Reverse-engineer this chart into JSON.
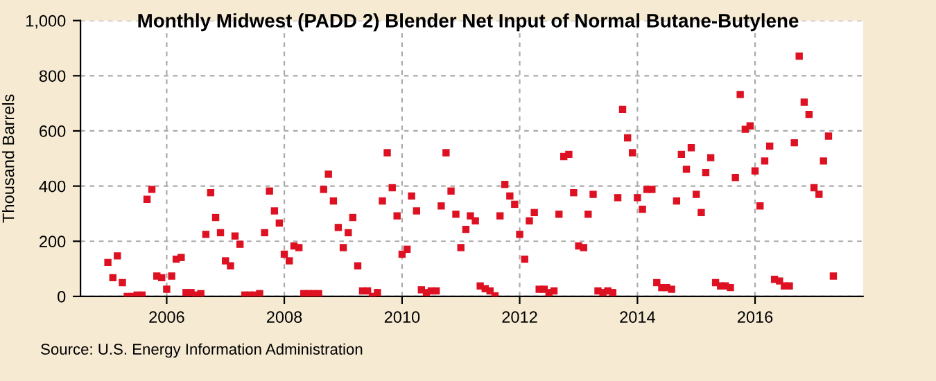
{
  "chart_data": {
    "type": "scatter",
    "title": "Monthly Midwest (PADD 2) Blender Net Input of Normal Butane-Butylene",
    "ylabel": "Thousand Barrels",
    "annotations": [
      "Source: U.S. Energy Information Administration"
    ],
    "x": [
      "2005-01",
      "2005-02",
      "2005-03",
      "2005-04",
      "2005-05",
      "2005-06",
      "2005-07",
      "2005-08",
      "2005-09",
      "2005-10",
      "2005-11",
      "2005-12",
      "2006-01",
      "2006-02",
      "2006-03",
      "2006-04",
      "2006-05",
      "2006-06",
      "2006-07",
      "2006-08",
      "2006-09",
      "2006-10",
      "2006-11",
      "2006-12",
      "2007-01",
      "2007-02",
      "2007-03",
      "2007-04",
      "2007-05",
      "2007-06",
      "2007-07",
      "2007-08",
      "2007-09",
      "2007-10",
      "2007-11",
      "2007-12",
      "2008-01",
      "2008-02",
      "2008-03",
      "2008-04",
      "2008-05",
      "2008-06",
      "2008-07",
      "2008-08",
      "2008-09",
      "2008-10",
      "2008-11",
      "2008-12",
      "2009-01",
      "2009-02",
      "2009-03",
      "2009-04",
      "2009-05",
      "2009-06",
      "2009-07",
      "2009-08",
      "2009-09",
      "2009-10",
      "2009-11",
      "2009-12",
      "2010-01",
      "2010-02",
      "2010-03",
      "2010-04",
      "2010-05",
      "2010-06",
      "2010-07",
      "2010-08",
      "2010-09",
      "2010-10",
      "2010-11",
      "2010-12",
      "2011-01",
      "2011-02",
      "2011-03",
      "2011-04",
      "2011-05",
      "2011-06",
      "2011-07",
      "2011-08",
      "2011-09",
      "2011-10",
      "2011-11",
      "2011-12",
      "2012-01",
      "2012-02",
      "2012-03",
      "2012-04",
      "2012-05",
      "2012-06",
      "2012-07",
      "2012-08",
      "2012-09",
      "2012-10",
      "2012-11",
      "2012-12",
      "2013-01",
      "2013-02",
      "2013-03",
      "2013-04",
      "2013-05",
      "2013-06",
      "2013-07",
      "2013-08",
      "2013-09",
      "2013-10",
      "2013-11",
      "2013-12",
      "2014-01",
      "2014-02",
      "2014-03",
      "2014-04",
      "2014-05",
      "2014-06",
      "2014-07",
      "2014-08",
      "2014-09",
      "2014-10",
      "2014-11",
      "2014-12",
      "2015-01",
      "2015-02",
      "2015-03",
      "2015-04",
      "2015-05",
      "2015-06",
      "2015-07",
      "2015-08",
      "2015-09",
      "2015-10",
      "2015-11",
      "2015-12",
      "2016-01",
      "2016-02",
      "2016-03",
      "2016-04",
      "2016-05",
      "2016-06",
      "2016-07",
      "2016-08",
      "2016-09",
      "2016-10",
      "2016-11",
      "2016-12",
      "2017-01",
      "2017-02",
      "2017-03",
      "2017-04",
      "2017-05"
    ],
    "series": [
      {
        "color": "#dd1122",
        "values": [
          123,
          68,
          147,
          50,
          0,
          0,
          5,
          5,
          352,
          388,
          74,
          68,
          26,
          74,
          135,
          141,
          14,
          14,
          5,
          10,
          225,
          376,
          286,
          231,
          129,
          111,
          219,
          189,
          5,
          5,
          5,
          10,
          231,
          382,
          310,
          266,
          153,
          129,
          183,
          177,
          10,
          10,
          10,
          10,
          388,
          443,
          346,
          250,
          177,
          231,
          286,
          111,
          20,
          20,
          0,
          14,
          346,
          521,
          394,
          292,
          153,
          171,
          364,
          310,
          24,
          14,
          20,
          20,
          328,
          521,
          382,
          298,
          177,
          243,
          292,
          274,
          38,
          28,
          20,
          2,
          292,
          406,
          364,
          334,
          225,
          135,
          274,
          304,
          26,
          26,
          14,
          20,
          298,
          507,
          515,
          376,
          183,
          177,
          298,
          370,
          20,
          14,
          20,
          14,
          358,
          678,
          575,
          521,
          358,
          316,
          388,
          388,
          50,
          32,
          32,
          26,
          346,
          515,
          461,
          539,
          370,
          304,
          449,
          503,
          50,
          38,
          38,
          32,
          431,
          732,
          606,
          618,
          455,
          328,
          491,
          545,
          62,
          56,
          38,
          38,
          557,
          871,
          704,
          660,
          394,
          370,
          491,
          581,
          74
        ]
      }
    ],
    "marker": "square",
    "xlim": [
      "2004-07-15",
      "2017-11-01"
    ],
    "xticks": [
      "2006",
      "2008",
      "2010",
      "2012",
      "2014",
      "2016"
    ],
    "ylim": [
      0,
      1000
    ],
    "yticks": [
      0,
      200,
      400,
      600,
      800,
      {
        "value": 1000,
        "label": "1,000"
      }
    ],
    "grid": true
  }
}
